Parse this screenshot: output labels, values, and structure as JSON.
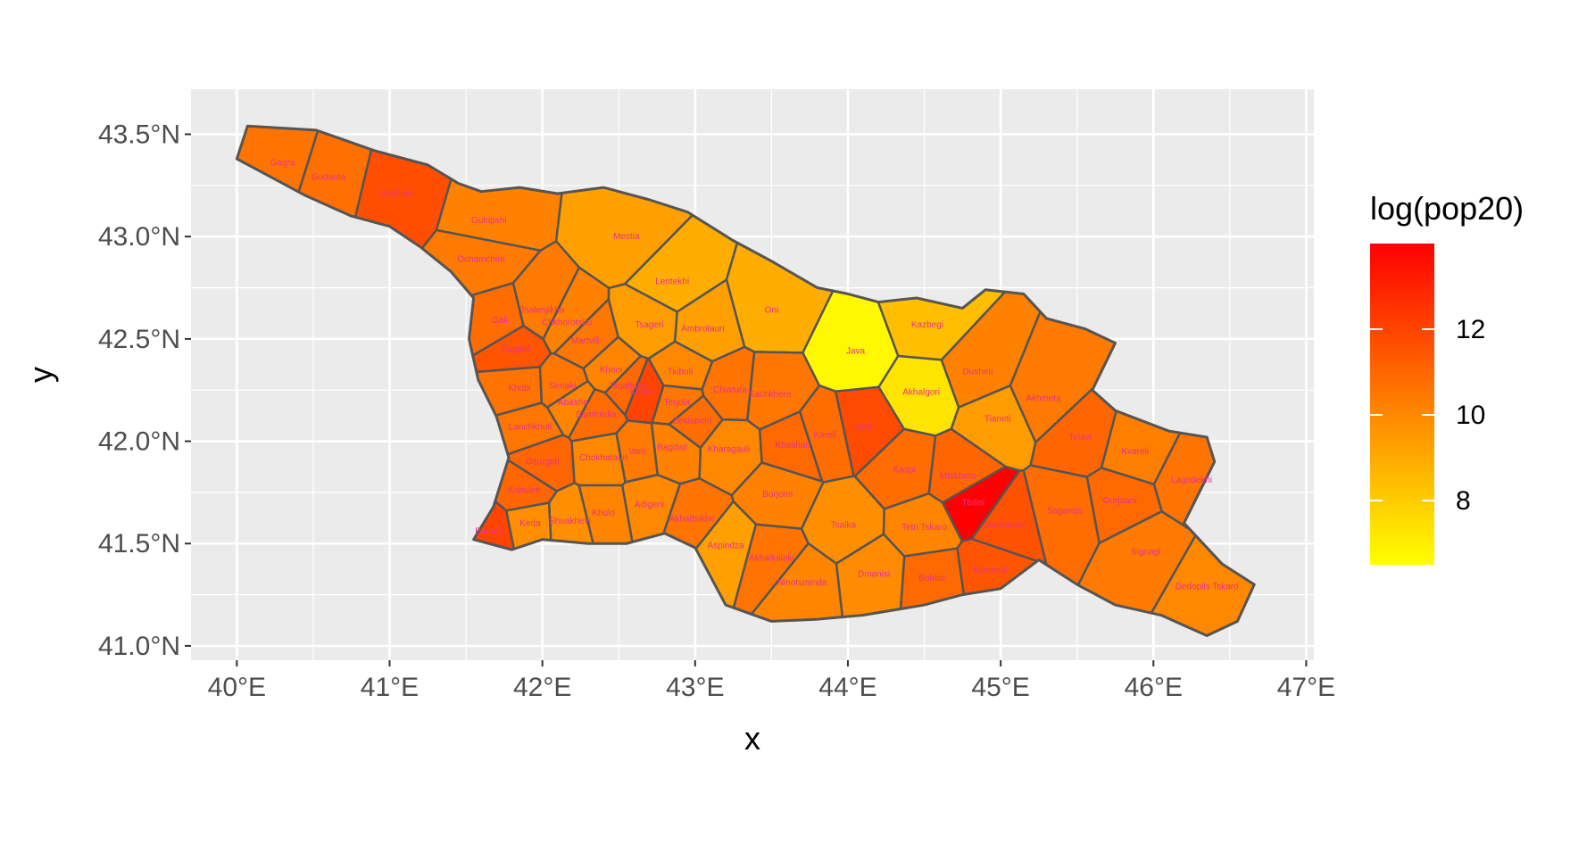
{
  "chart_data": {
    "type": "map",
    "xlabel": "x",
    "ylabel": "y",
    "xlim": [
      39.7,
      47.05
    ],
    "ylim": [
      40.93,
      43.72
    ],
    "x_ticks": [
      {
        "value": 40,
        "label": "40°E"
      },
      {
        "value": 41,
        "label": "41°E"
      },
      {
        "value": 42,
        "label": "42°E"
      },
      {
        "value": 43,
        "label": "43°E"
      },
      {
        "value": 44,
        "label": "44°E"
      },
      {
        "value": 45,
        "label": "45°E"
      },
      {
        "value": 46,
        "label": "46°E"
      },
      {
        "value": 47,
        "label": "47°E"
      }
    ],
    "y_ticks": [
      {
        "value": 41.0,
        "label": "41.0°N"
      },
      {
        "value": 41.5,
        "label": "41.5°N"
      },
      {
        "value": 42.0,
        "label": "42.0°N"
      },
      {
        "value": 42.5,
        "label": "42.5°N"
      },
      {
        "value": 43.0,
        "label": "43.0°N"
      },
      {
        "value": 43.5,
        "label": "43.5°N"
      }
    ],
    "legend": {
      "title": "log(pop20)",
      "placement": "right",
      "range": [
        6.5,
        14.0
      ],
      "breaks": [
        {
          "value": 8,
          "label": "8"
        },
        {
          "value": 10,
          "label": "10"
        },
        {
          "value": 12,
          "label": "12"
        }
      ],
      "low_color": "#ffff00",
      "high_color": "#ff0000"
    },
    "grid": true,
    "panel_background": "#ebebeb",
    "grid_color": "#ffffff",
    "border_color": "#555555",
    "label_color": "#e8318f",
    "regions": [
      {
        "name": "Gagra",
        "lon": 40.3,
        "lat": 43.36,
        "value": 10.6
      },
      {
        "name": "Gudauta",
        "lon": 40.6,
        "lat": 43.29,
        "value": 10.7
      },
      {
        "name": "Sokhumi",
        "lon": 41.05,
        "lat": 43.21,
        "value": 11.7
      },
      {
        "name": "Gulripshi",
        "lon": 41.65,
        "lat": 43.08,
        "value": 10.2
      },
      {
        "name": "Ochamchire",
        "lon": 41.6,
        "lat": 42.89,
        "value": 10.4
      },
      {
        "name": "Mestia",
        "lon": 42.55,
        "lat": 43.0,
        "value": 9.3
      },
      {
        "name": "Lentekhi",
        "lon": 42.85,
        "lat": 42.78,
        "value": 8.9
      },
      {
        "name": "Oni",
        "lon": 43.5,
        "lat": 42.64,
        "value": 8.9
      },
      {
        "name": "Java",
        "lon": 44.05,
        "lat": 42.44,
        "value": 6.7
      },
      {
        "name": "Kazbegi",
        "lon": 44.52,
        "lat": 42.57,
        "value": 8.4
      },
      {
        "name": "Akhalgori",
        "lon": 44.48,
        "lat": 42.24,
        "value": 7.3
      },
      {
        "name": "Dusheti",
        "lon": 44.85,
        "lat": 42.34,
        "value": 10.2
      },
      {
        "name": "Tianeti",
        "lon": 44.98,
        "lat": 42.11,
        "value": 9.4
      },
      {
        "name": "Akhmeta",
        "lon": 45.28,
        "lat": 42.21,
        "value": 10.4
      },
      {
        "name": "Telavi",
        "lon": 45.52,
        "lat": 42.02,
        "value": 11.0
      },
      {
        "name": "Kvareli",
        "lon": 45.88,
        "lat": 41.95,
        "value": 10.3
      },
      {
        "name": "Lagodekhi",
        "lon": 46.25,
        "lat": 41.81,
        "value": 10.6
      },
      {
        "name": "Gurjaani",
        "lon": 45.78,
        "lat": 41.71,
        "value": 10.9
      },
      {
        "name": "Sagarejo",
        "lon": 45.42,
        "lat": 41.66,
        "value": 10.8
      },
      {
        "name": "Signagi",
        "lon": 45.95,
        "lat": 41.46,
        "value": 10.4
      },
      {
        "name": "Dedoplis Tskaro",
        "lon": 46.35,
        "lat": 41.29,
        "value": 10.0
      },
      {
        "name": "Tbilisi",
        "lon": 44.82,
        "lat": 41.7,
        "value": 14.0
      },
      {
        "name": "Gardabani",
        "lon": 45.03,
        "lat": 41.59,
        "value": 11.6
      },
      {
        "name": "Mtskheta",
        "lon": 44.72,
        "lat": 41.83,
        "value": 11.0
      },
      {
        "name": "Kaspi",
        "lon": 44.37,
        "lat": 41.86,
        "value": 10.8
      },
      {
        "name": "Gori",
        "lon": 44.1,
        "lat": 42.07,
        "value": 11.8
      },
      {
        "name": "Kareli",
        "lon": 43.85,
        "lat": 42.03,
        "value": 10.8
      },
      {
        "name": "Khashuri",
        "lon": 43.64,
        "lat": 41.98,
        "value": 10.9
      },
      {
        "name": "Sachkhere",
        "lon": 43.49,
        "lat": 42.23,
        "value": 10.5
      },
      {
        "name": "Chiatura",
        "lon": 43.23,
        "lat": 42.25,
        "value": 10.6
      },
      {
        "name": "Kharagauli",
        "lon": 43.22,
        "lat": 41.96,
        "value": 10.0
      },
      {
        "name": "Borjomi",
        "lon": 43.54,
        "lat": 41.74,
        "value": 10.2
      },
      {
        "name": "Tsalka",
        "lon": 43.97,
        "lat": 41.59,
        "value": 9.8
      },
      {
        "name": "Tetri Tskaro",
        "lon": 44.5,
        "lat": 41.58,
        "value": 10.1
      },
      {
        "name": "Marneuli",
        "lon": 44.93,
        "lat": 41.37,
        "value": 11.5
      },
      {
        "name": "Bolnisi",
        "lon": 44.55,
        "lat": 41.33,
        "value": 10.9
      },
      {
        "name": "Dmanisi",
        "lon": 44.17,
        "lat": 41.35,
        "value": 9.9
      },
      {
        "name": "Ninotsminda",
        "lon": 43.7,
        "lat": 41.31,
        "value": 10.1
      },
      {
        "name": "Akhalkalaki",
        "lon": 43.5,
        "lat": 41.43,
        "value": 10.6
      },
      {
        "name": "Aspindza",
        "lon": 43.2,
        "lat": 41.49,
        "value": 9.3
      },
      {
        "name": "Akhaltsikhe",
        "lon": 42.98,
        "lat": 41.62,
        "value": 10.6
      },
      {
        "name": "Adigeni",
        "lon": 42.7,
        "lat": 41.69,
        "value": 10.0
      },
      {
        "name": "Khulo",
        "lon": 42.4,
        "lat": 41.65,
        "value": 10.1
      },
      {
        "name": "Shuakhevi",
        "lon": 42.18,
        "lat": 41.61,
        "value": 9.8
      },
      {
        "name": "Keda",
        "lon": 41.92,
        "lat": 41.6,
        "value": 9.8
      },
      {
        "name": "Batumi",
        "lon": 41.65,
        "lat": 41.56,
        "value": 12.0
      },
      {
        "name": "Kobuleti",
        "lon": 41.88,
        "lat": 41.76,
        "value": 11.0
      },
      {
        "name": "Ozurgeti",
        "lon": 42.0,
        "lat": 41.9,
        "value": 11.0
      },
      {
        "name": "Lanchkhuti",
        "lon": 41.92,
        "lat": 42.07,
        "value": 10.5
      },
      {
        "name": "Chokhatauri",
        "lon": 42.4,
        "lat": 41.92,
        "value": 10.0
      },
      {
        "name": "Vani",
        "lon": 42.62,
        "lat": 41.95,
        "value": 10.4
      },
      {
        "name": "Bagdati",
        "lon": 42.85,
        "lat": 41.97,
        "value": 10.2
      },
      {
        "name": "Samtredia",
        "lon": 42.35,
        "lat": 42.13,
        "value": 10.8
      },
      {
        "name": "Abasha",
        "lon": 42.2,
        "lat": 42.19,
        "value": 10.1
      },
      {
        "name": "Senaki",
        "lon": 42.13,
        "lat": 42.27,
        "value": 10.5
      },
      {
        "name": "Khobi",
        "lon": 41.85,
        "lat": 42.26,
        "value": 10.6
      },
      {
        "name": "Zugdidi",
        "lon": 41.83,
        "lat": 42.45,
        "value": 11.5
      },
      {
        "name": "Gali",
        "lon": 41.72,
        "lat": 42.59,
        "value": 10.8
      },
      {
        "name": "Tsalenjikha",
        "lon": 42.0,
        "lat": 42.64,
        "value": 10.4
      },
      {
        "name": "Chkhorotsku",
        "lon": 42.16,
        "lat": 42.58,
        "value": 10.2
      },
      {
        "name": "Martvili",
        "lon": 42.28,
        "lat": 42.49,
        "value": 10.5
      },
      {
        "name": "Khoni",
        "lon": 42.45,
        "lat": 42.35,
        "value": 10.1
      },
      {
        "name": "Tsqaltubo",
        "lon": 42.56,
        "lat": 42.27,
        "value": 10.9
      },
      {
        "name": "Kutaisi",
        "lon": 42.66,
        "lat": 42.24,
        "value": 12.0
      },
      {
        "name": "Tkibuli",
        "lon": 42.9,
        "lat": 42.34,
        "value": 10.0
      },
      {
        "name": "Terjola",
        "lon": 42.88,
        "lat": 42.19,
        "value": 10.5
      },
      {
        "name": "Zestaponi",
        "lon": 42.98,
        "lat": 42.1,
        "value": 10.8
      },
      {
        "name": "Tsageri",
        "lon": 42.7,
        "lat": 42.57,
        "value": 9.4
      },
      {
        "name": "Ambrolauri",
        "lon": 43.05,
        "lat": 42.55,
        "value": 9.3
      }
    ]
  }
}
